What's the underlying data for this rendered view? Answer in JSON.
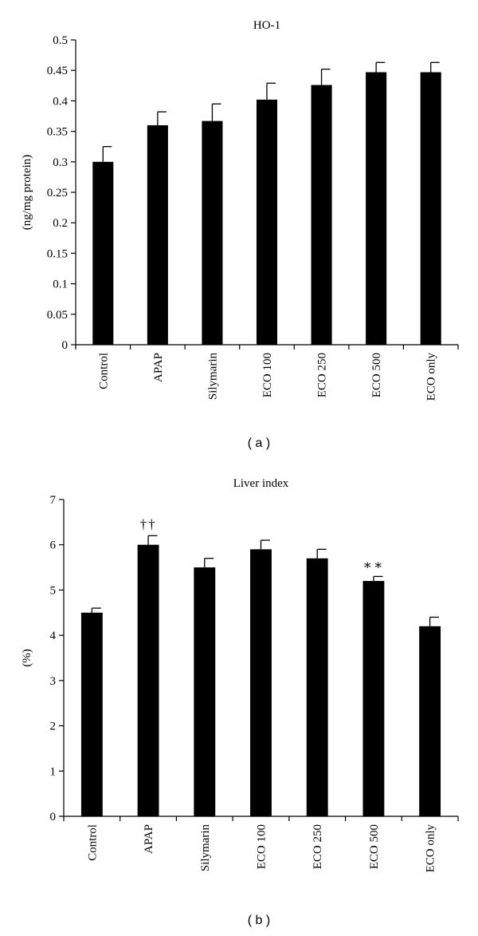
{
  "chart_data": [
    {
      "type": "bar",
      "title": "HO-1",
      "ylabel": "(ng/mg protein)",
      "xlabel": "",
      "ylim": [
        0,
        0.5
      ],
      "yticks": [
        "0",
        "0.05",
        "0.1",
        "0.15",
        "0.2",
        "0.25",
        "0.3",
        "0.35",
        "0.4",
        "0.45",
        "0.5"
      ],
      "categories": [
        "Control",
        "APAP",
        "Silymarin",
        "ECO 100",
        "ECO 250",
        "ECO 500",
        "ECO only"
      ],
      "values": [
        0.3,
        0.36,
        0.367,
        0.402,
        0.426,
        0.447,
        0.447
      ],
      "errors": [
        0.025,
        0.022,
        0.028,
        0.027,
        0.026,
        0.016,
        0.016
      ],
      "annotations": [
        "",
        "",
        "",
        "",
        "",
        "",
        ""
      ],
      "bar_color": "#000000",
      "grid": false,
      "panel_label": "( a )"
    },
    {
      "type": "bar",
      "title": "Liver index",
      "ylabel": "(%)",
      "xlabel": "",
      "ylim": [
        0,
        7
      ],
      "yticks": [
        "0",
        "1",
        "2",
        "3",
        "4",
        "5",
        "6",
        "7"
      ],
      "categories": [
        "Control",
        "APAP",
        "Silymarin",
        "ECO 100",
        "ECO 250",
        "ECO 500",
        "ECO only"
      ],
      "values": [
        4.5,
        6.0,
        5.5,
        5.9,
        5.7,
        5.2,
        4.2
      ],
      "errors": [
        0.1,
        0.2,
        0.2,
        0.2,
        0.2,
        0.1,
        0.2
      ],
      "annotations": [
        "",
        "††",
        "",
        "",
        "",
        "∗∗",
        ""
      ],
      "bar_color": "#000000",
      "grid": false,
      "panel_label": "( b )"
    }
  ]
}
